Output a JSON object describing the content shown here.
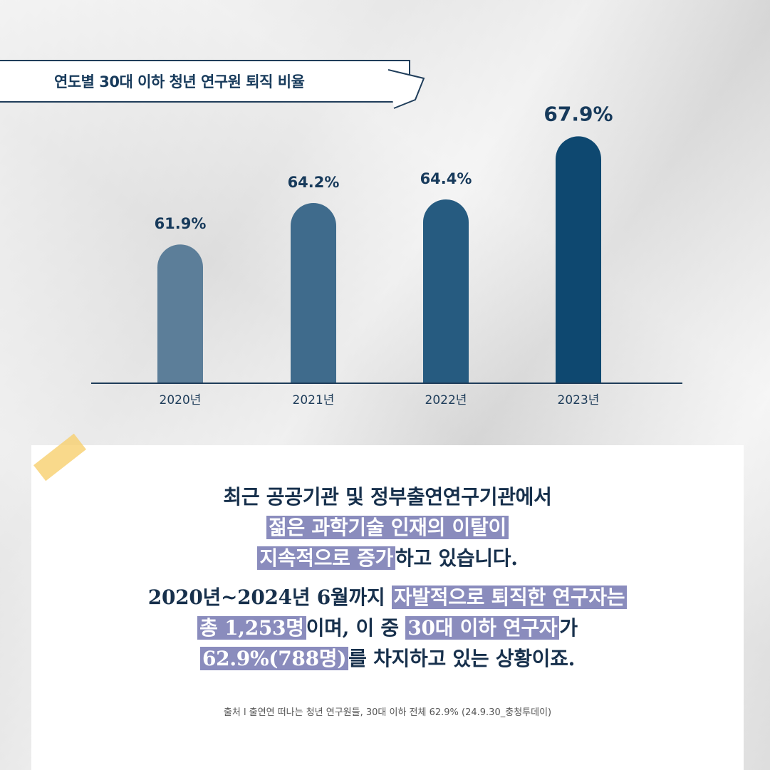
{
  "title": "연도별 30대 이하 청년 연구원 퇴직 비율",
  "colors": {
    "title": "#173a5b",
    "bars": [
      "#5c7e99",
      "#3f6b8c",
      "#265b80",
      "#0e4870"
    ],
    "highlight": "#8a8cbd",
    "tape": "#f7d06e"
  },
  "chart_data": {
    "type": "bar",
    "title": "연도별 30대 이하 청년 연구원 퇴직 비율",
    "categories": [
      "2020년",
      "2021년",
      "2022년",
      "2023년"
    ],
    "values": [
      61.9,
      64.2,
      64.4,
      67.9
    ],
    "value_labels": [
      "61.9%",
      "64.2%",
      "64.4%",
      "67.9%"
    ],
    "unit": "%",
    "xlabel": "",
    "ylabel": "",
    "grid": false
  },
  "body": {
    "para1": {
      "line1": "최근 공공기관 및 정부출연연구기관에서",
      "line2_hl": "젊은 과학기술 인재의 이탈이",
      "line3_hl": "지속적으로 증가",
      "line3_rest": "하고 있습니다."
    },
    "para2": {
      "line1_plain": "2020년~2024년 6월까지 ",
      "line1_hl": "자발적으로 퇴직한 연구자는",
      "line2_hl1": "총 1,253명",
      "line2_mid": "이며, 이 중 ",
      "line2_hl2": "30대 이하 연구자",
      "line2_end": "가",
      "line3_hl": "62.9%(788명)",
      "line3_rest": "를 차지하고 있는 상황이죠."
    }
  },
  "source": "출처 l 출연연 떠나는 청년 연구원들, 30대 이하 전체 62.9% (24.9.30_충청투데이)"
}
